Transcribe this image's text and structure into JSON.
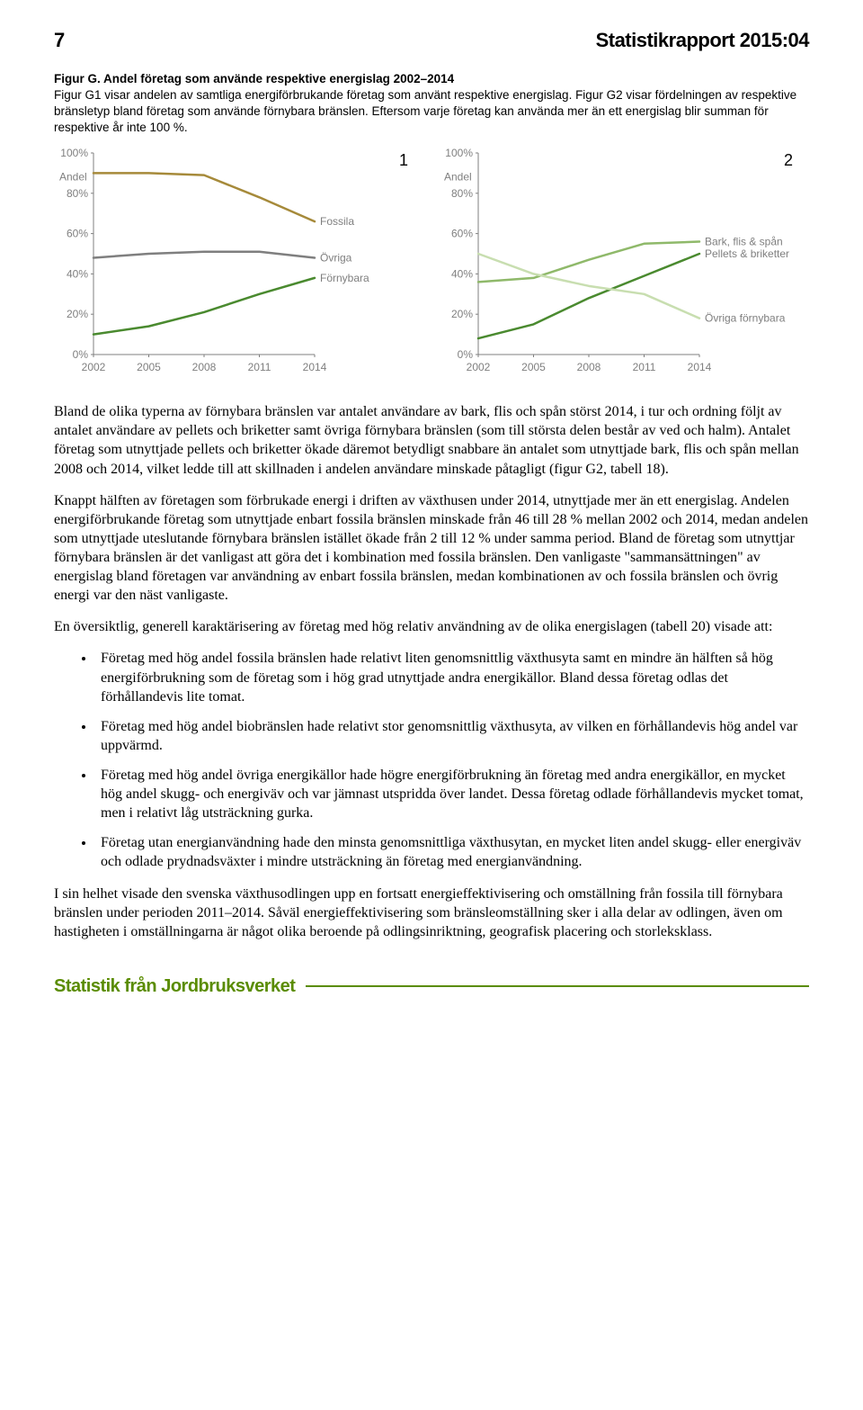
{
  "header": {
    "page_number": "7",
    "report_title": "Statistikrapport 2015:04"
  },
  "figure": {
    "label": "Figur G. Andel företag som använde respektive energislag 2002–2014",
    "caption_rest": "Figur G1 visar andelen av samtliga energiförbrukande företag som använt respektive energislag. Figur G2 visar fördelningen av respektive bränsletyp bland företag som använde förnybara bränslen. Eftersom varje företag kan använda mer än ett energislag blir summan för respektive år inte 100 %."
  },
  "chart1": {
    "type": "line",
    "panel_label": "1",
    "x_categories": [
      "2002",
      "2005",
      "2008",
      "2011",
      "2014"
    ],
    "y_ticks": [
      "0%",
      "20%",
      "40%",
      "60%",
      "80%",
      "100%"
    ],
    "y_axis_title": "Andel",
    "series": [
      {
        "name": "Fossila",
        "label": "Fossila",
        "color": "#a68a3a",
        "width": 2.5,
        "values": [
          90,
          90,
          89,
          78,
          66
        ]
      },
      {
        "name": "Övriga",
        "label": "Övriga",
        "color": "#7f7f7f",
        "width": 2.5,
        "values": [
          48,
          50,
          51,
          51,
          48
        ]
      },
      {
        "name": "Förnybara",
        "label": "Förnybara",
        "color": "#4a8a2f",
        "width": 2.5,
        "values": [
          10,
          14,
          21,
          30,
          38
        ]
      }
    ],
    "background_color": "#ffffff",
    "axis_color": "#7f7f7f",
    "tick_font_size": 12,
    "label_font_size": 12,
    "label_color": "#7f7f7f",
    "ylim": [
      0,
      100
    ]
  },
  "chart2": {
    "type": "line",
    "panel_label": "2",
    "x_categories": [
      "2002",
      "2005",
      "2008",
      "2011",
      "2014"
    ],
    "y_ticks": [
      "0%",
      "20%",
      "40%",
      "60%",
      "80%",
      "100%"
    ],
    "y_axis_title": "Andel",
    "series": [
      {
        "name": "Bark, flis & spån",
        "label": "Bark, flis & spån",
        "color": "#8fb96a",
        "width": 2.5,
        "values": [
          36,
          38,
          47,
          55,
          56
        ]
      },
      {
        "name": "Pellets & briketter",
        "label": "Pellets & briketter",
        "color": "#4a8a2f",
        "width": 2.5,
        "values": [
          8,
          15,
          28,
          39,
          50
        ]
      },
      {
        "name": "Övriga förnybara",
        "label": "Övriga förnybara",
        "color": "#c8deb0",
        "width": 2.5,
        "values": [
          50,
          40,
          34,
          30,
          18
        ]
      }
    ],
    "background_color": "#ffffff",
    "axis_color": "#7f7f7f",
    "tick_font_size": 12,
    "label_font_size": 12,
    "label_color": "#7f7f7f",
    "ylim": [
      0,
      100
    ]
  },
  "body": {
    "p1": "Bland de olika typerna av förnybara bränslen var antalet användare av bark, flis och spån störst 2014, i tur och ordning följt av antalet användare av pellets och briketter samt övriga förnybara bränslen (som till största delen består av ved och halm). Antalet företag som utnyttjade pellets och briketter ökade däremot betydligt snabbare än antalet som utnyttjade bark, flis och spån mellan 2008 och 2014, vilket ledde till att skillnaden i andelen användare minskade påtagligt (figur G2, tabell 18).",
    "p2": "Knappt hälften av företagen som förbrukade energi i driften av växthusen under 2014, utnyttjade mer än ett energislag. Andelen energiförbrukande företag som utnyttjade enbart fossila bränslen minskade från 46 till 28 % mellan 2002 och 2014, medan andelen som utnyttjade uteslutande förnybara bränslen istället ökade från 2 till 12 % under samma period. Bland de företag som utnyttjar förnybara bränslen är det vanligast att göra det i kombination med fossila bränslen. Den vanligaste \"sammansättningen\" av energislag bland företagen var användning av enbart fossila bränslen, medan kombinationen av och fossila bränslen och övrig energi var den näst vanligaste.",
    "p3": "En översiktlig, generell karaktärisering av företag med hög relativ användning av de olika energislagen (tabell 20) visade att:",
    "bullets": [
      "Företag med hög andel fossila bränslen hade relativt liten genomsnittlig växthusyta samt en mindre än hälften så hög energiförbrukning som de företag som i hög grad utnyttjade andra energikällor. Bland dessa företag odlas det förhållandevis lite tomat.",
      "Företag med hög andel biobränslen hade relativt stor genomsnittlig växthusyta, av vilken en förhållandevis hög andel var uppvärmd.",
      "Företag med hög andel övriga energikällor hade högre energiförbrukning än företag med andra energikällor, en mycket hög andel skugg- och energiväv och var jämnast utspridda över landet. Dessa företag odlade förhållandevis mycket tomat, men i relativt låg utsträckning gurka.",
      "Företag utan energianvändning hade den minsta genomsnittliga växthusytan, en mycket liten andel skugg- eller energiväv och odlade prydnadsväxter i mindre utsträckning än företag med energianvändning."
    ],
    "p4": "I sin helhet visade den svenska växthusodlingen upp en fortsatt energieffektivisering och omställning från fossila till förnybara bränslen under perioden 2011–2014. Såväl energieffektivisering som bränsleomställning sker i alla delar av odlingen, även om hastigheten i omställningarna är något olika beroende på odlingsinriktning, geografisk placering och storleksklass."
  },
  "footer": {
    "text": "Statistik från Jordbruksverket",
    "text_color": "#5a8c00",
    "line_color": "#5a8c00"
  }
}
